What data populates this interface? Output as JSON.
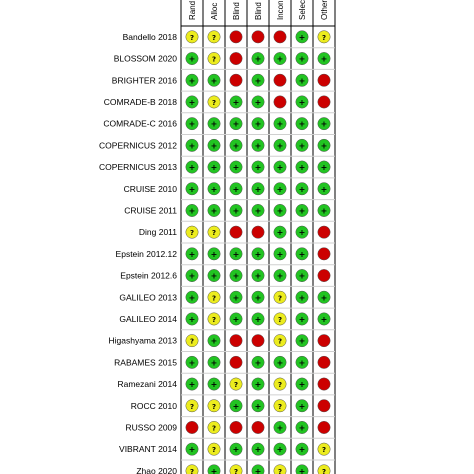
{
  "chart_data": {
    "type": "table",
    "columns": [
      "Rand",
      "Alloc",
      "Blind",
      "Blind",
      "Incon",
      "Selec",
      "Other"
    ],
    "legend": {
      "low": {
        "color": "#22c422",
        "symbol": "+"
      },
      "unclear": {
        "color": "#ecec1e",
        "symbol": "?"
      },
      "high": {
        "color": "#cc0000",
        "symbol": ""
      }
    },
    "studies": [
      {
        "label": "Bandello 2018",
        "ratings": [
          "unclear",
          "unclear",
          "high",
          "high",
          "high",
          "low",
          "unclear"
        ]
      },
      {
        "label": "BLOSSOM 2020",
        "ratings": [
          "low",
          "unclear",
          "high",
          "low",
          "low",
          "low",
          "low"
        ]
      },
      {
        "label": "BRIGHTER 2016",
        "ratings": [
          "low",
          "low",
          "high",
          "low",
          "high",
          "low",
          "high"
        ]
      },
      {
        "label": "COMRADE-B 2018",
        "ratings": [
          "low",
          "unclear",
          "low",
          "low",
          "high",
          "low",
          "high"
        ]
      },
      {
        "label": "COMRADE-C 2016",
        "ratings": [
          "low",
          "low",
          "low",
          "low",
          "low",
          "low",
          "low"
        ]
      },
      {
        "label": "COPERNICUS 2012",
        "ratings": [
          "low",
          "low",
          "low",
          "low",
          "low",
          "low",
          "low"
        ]
      },
      {
        "label": "COPERNICUS 2013",
        "ratings": [
          "low",
          "low",
          "low",
          "low",
          "low",
          "low",
          "low"
        ]
      },
      {
        "label": "CRUISE 2010",
        "ratings": [
          "low",
          "low",
          "low",
          "low",
          "low",
          "low",
          "low"
        ]
      },
      {
        "label": "CRUISE 2011",
        "ratings": [
          "low",
          "low",
          "low",
          "low",
          "low",
          "low",
          "low"
        ]
      },
      {
        "label": "Ding 2011",
        "ratings": [
          "unclear",
          "unclear",
          "high",
          "high",
          "low",
          "low",
          "high"
        ]
      },
      {
        "label": "Epstein 2012.12",
        "ratings": [
          "low",
          "low",
          "low",
          "low",
          "low",
          "low",
          "high"
        ]
      },
      {
        "label": "Epstein 2012.6",
        "ratings": [
          "low",
          "low",
          "low",
          "low",
          "low",
          "low",
          "high"
        ]
      },
      {
        "label": "GALILEO 2013",
        "ratings": [
          "low",
          "unclear",
          "low",
          "low",
          "unclear",
          "low",
          "low"
        ]
      },
      {
        "label": "GALILEO 2014",
        "ratings": [
          "low",
          "unclear",
          "low",
          "low",
          "unclear",
          "low",
          "low"
        ]
      },
      {
        "label": "Higashyama  2013",
        "ratings": [
          "unclear",
          "low",
          "high",
          "high",
          "unclear",
          "low",
          "high"
        ]
      },
      {
        "label": "RABAMES 2015",
        "ratings": [
          "low",
          "low",
          "high",
          "low",
          "low",
          "low",
          "high"
        ]
      },
      {
        "label": "Ramezani 2014",
        "ratings": [
          "low",
          "low",
          "unclear",
          "low",
          "unclear",
          "low",
          "high"
        ]
      },
      {
        "label": "ROCC 2010",
        "ratings": [
          "unclear",
          "unclear",
          "low",
          "low",
          "unclear",
          "low",
          "high"
        ]
      },
      {
        "label": "RUSSO 2009",
        "ratings": [
          "high",
          "unclear",
          "high",
          "high",
          "low",
          "low",
          "high"
        ]
      },
      {
        "label": "VIBRANT 2014",
        "ratings": [
          "low",
          "unclear",
          "low",
          "low",
          "low",
          "low",
          "unclear"
        ]
      },
      {
        "label": "Zhao 2020",
        "ratings": [
          "unclear",
          "low",
          "unclear",
          "low",
          "unclear",
          "low",
          "unclear"
        ]
      }
    ]
  }
}
